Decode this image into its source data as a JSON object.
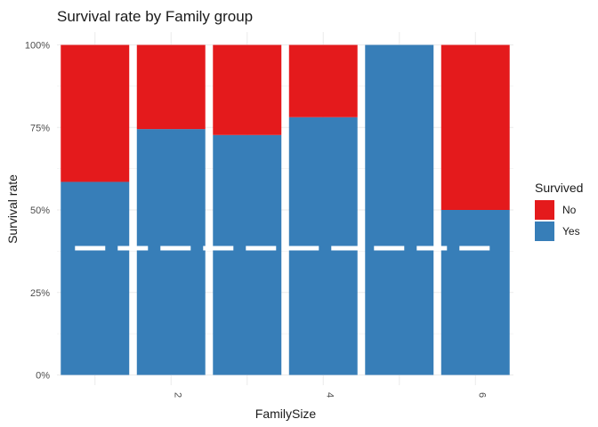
{
  "chart_data": {
    "type": "bar",
    "stacked": "fill",
    "title": "Survival rate by Family group",
    "xlabel": "FamilySize",
    "ylabel": "Survival rate",
    "x": [
      1,
      2,
      3,
      4,
      5,
      6
    ],
    "x_tick_labels": [
      "2",
      "4",
      "6"
    ],
    "y_ticks": [
      "0%",
      "25%",
      "50%",
      "75%",
      "100%"
    ],
    "ylim": [
      0,
      1
    ],
    "series": [
      {
        "name": "Yes",
        "color": "#377EB8",
        "values": [
          0.585,
          0.745,
          0.727,
          0.781,
          1.0,
          0.5
        ]
      },
      {
        "name": "No",
        "color": "#E41A1C",
        "values": [
          0.415,
          0.255,
          0.273,
          0.219,
          0.0,
          0.5
        ]
      }
    ],
    "reference_line": {
      "y": 0.384,
      "style": "dashed",
      "color": "#ffffff"
    },
    "legend": {
      "title": "Survived",
      "placement": "right",
      "entries": [
        "No",
        "Yes"
      ]
    },
    "grid": true
  }
}
